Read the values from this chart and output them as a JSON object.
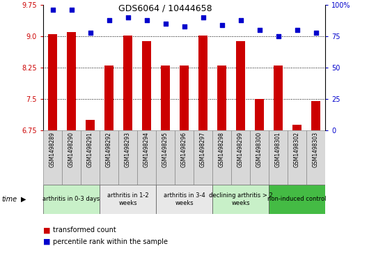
{
  "title": "GDS6064 / 10444658",
  "samples": [
    "GSM1498289",
    "GSM1498290",
    "GSM1498291",
    "GSM1498292",
    "GSM1498293",
    "GSM1498294",
    "GSM1498295",
    "GSM1498296",
    "GSM1498297",
    "GSM1498298",
    "GSM1498299",
    "GSM1498300",
    "GSM1498301",
    "GSM1498302",
    "GSM1498303"
  ],
  "bar_values": [
    9.05,
    9.1,
    7.0,
    8.3,
    9.02,
    8.88,
    8.3,
    8.3,
    9.02,
    8.3,
    8.88,
    7.5,
    8.3,
    6.88,
    7.45
  ],
  "scatter_values": [
    96,
    96,
    78,
    88,
    90,
    88,
    85,
    83,
    90,
    84,
    88,
    80,
    75,
    80,
    78
  ],
  "ylim_left": [
    6.75,
    9.75
  ],
  "ylim_right": [
    0,
    100
  ],
  "yticks_left": [
    6.75,
    7.5,
    8.25,
    9.0,
    9.75
  ],
  "yticks_right": [
    0,
    25,
    50,
    75,
    100
  ],
  "bar_color": "#cc0000",
  "scatter_color": "#0000cc",
  "groups": [
    {
      "label": "arthritis in 0-3 days",
      "start": 0,
      "end": 3,
      "color": "#c8f0c8"
    },
    {
      "label": "arthritis in 1-2\nweeks",
      "start": 3,
      "end": 6,
      "color": "#e8e8e8"
    },
    {
      "label": "arthritis in 3-4\nweeks",
      "start": 6,
      "end": 9,
      "color": "#e8e8e8"
    },
    {
      "label": "declining arthritis > 2\nweeks",
      "start": 9,
      "end": 12,
      "color": "#c8f0c8"
    },
    {
      "label": "non-induced control",
      "start": 12,
      "end": 15,
      "color": "#44bb44"
    }
  ],
  "legend_bar_label": "transformed count",
  "legend_scatter_label": "percentile rank within the sample",
  "time_label": "time",
  "grid_dotted_values": [
    7.5,
    8.25,
    9.0
  ],
  "xlabel_color": "#cc0000",
  "right_axis_color": "#0000cc",
  "ybase": 6.75
}
